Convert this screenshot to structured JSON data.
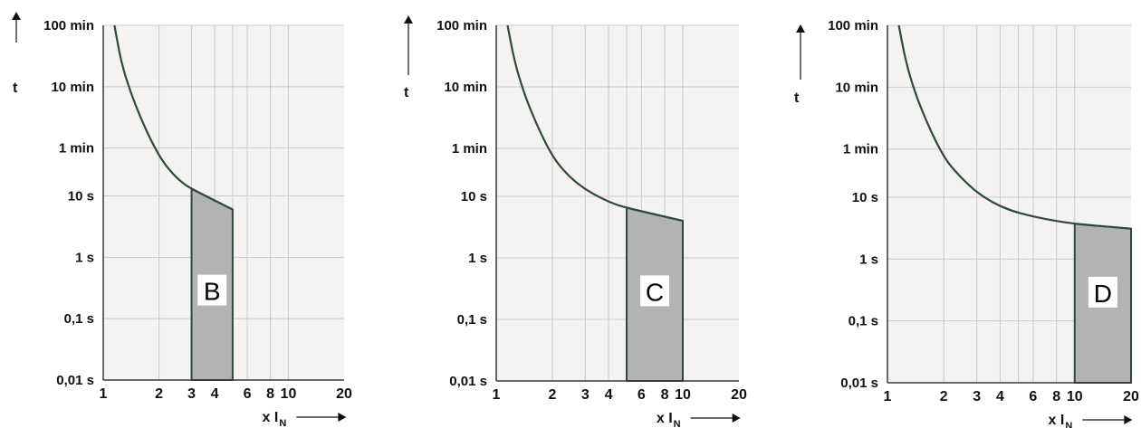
{
  "colors": {
    "plot_bg": "#f4f3f2",
    "grid": "#c9c9c9",
    "curve": "#2d4a3c",
    "region_fill": "#b3b3b3",
    "label_box": "#ffffff",
    "text": "#111111"
  },
  "chart_data": [
    {
      "type": "line",
      "label": "B",
      "xscale": "log",
      "yscale": "log",
      "xlim": [
        1,
        20
      ],
      "ylim_seconds": [
        0.01,
        6000
      ],
      "y_ticks": [
        "100 min",
        "10 min",
        "1 min",
        "10 s",
        "1 s",
        "0,1 s",
        "0,01 s"
      ],
      "y_tick_values_s": [
        6000,
        600,
        60,
        10,
        1,
        0.1,
        0.01
      ],
      "x_ticks": [
        "1",
        "2",
        "3",
        "4",
        "6",
        "8",
        "10",
        "20"
      ],
      "x_tick_values": [
        1,
        2,
        3,
        4,
        6,
        8,
        10,
        20
      ],
      "x_grid": [
        2,
        3,
        4,
        5,
        6,
        8,
        10
      ],
      "y_axis_label": "t",
      "x_axis_label": "x I",
      "x_axis_label_sub": "N",
      "region_x": [
        3,
        5
      ],
      "curve": {
        "x": [
          1.15,
          1.25,
          1.4,
          1.6,
          1.85,
          2.1,
          2.4,
          2.7,
          3.0
        ],
        "y_s": [
          6000,
          1500,
          500,
          180,
          70,
          36,
          22,
          16,
          13
        ]
      },
      "tail": {
        "x": [
          3,
          5
        ],
        "y_s": [
          13,
          6
        ]
      }
    },
    {
      "type": "line",
      "label": "C",
      "xscale": "log",
      "yscale": "log",
      "xlim": [
        1,
        20
      ],
      "ylim_seconds": [
        0.01,
        6000
      ],
      "y_ticks": [
        "100 min",
        "10 min",
        "1 min",
        "10 s",
        "1 s",
        "0,1 s",
        "0,01 s"
      ],
      "y_tick_values_s": [
        6000,
        600,
        60,
        10,
        1,
        0.1,
        0.01
      ],
      "x_ticks": [
        "1",
        "2",
        "3",
        "4",
        "6",
        "8",
        "10",
        "20"
      ],
      "x_tick_values": [
        1,
        2,
        3,
        4,
        6,
        8,
        10,
        20
      ],
      "x_grid": [
        2,
        3,
        4,
        5,
        6,
        8,
        10
      ],
      "y_axis_label": "t",
      "x_axis_label": "x I",
      "x_axis_label_sub": "N",
      "region_x": [
        5,
        10
      ],
      "curve": {
        "x": [
          1.15,
          1.25,
          1.4,
          1.6,
          1.85,
          2.1,
          2.5,
          3.0,
          3.6,
          4.3,
          5.0
        ],
        "y_s": [
          6000,
          1600,
          500,
          180,
          70,
          36,
          20,
          13,
          9.5,
          7.5,
          6.5
        ]
      },
      "tail": {
        "x": [
          5,
          10
        ],
        "y_s": [
          6.5,
          4
        ]
      }
    },
    {
      "type": "line",
      "label": "D",
      "xscale": "log",
      "yscale": "log",
      "xlim": [
        1,
        20
      ],
      "ylim_seconds": [
        0.01,
        6000
      ],
      "y_ticks": [
        "100 min",
        "10 min",
        "1 min",
        "10 s",
        "1 s",
        "0,1 s",
        "0,01 s"
      ],
      "y_tick_values_s": [
        6000,
        600,
        60,
        10,
        1,
        0.1,
        0.01
      ],
      "x_ticks": [
        "1",
        "2",
        "3",
        "4",
        "6",
        "8",
        "10",
        "20"
      ],
      "x_tick_values": [
        1,
        2,
        3,
        4,
        6,
        8,
        10,
        20
      ],
      "x_grid": [
        2,
        3,
        4,
        5,
        6,
        8,
        10
      ],
      "y_axis_label": "t",
      "x_axis_label": "x I",
      "x_axis_label_sub": "N",
      "region_x": [
        10,
        20
      ],
      "curve": {
        "x": [
          1.15,
          1.25,
          1.4,
          1.6,
          1.85,
          2.1,
          2.5,
          3.0,
          3.7,
          4.6,
          5.8,
          7.3,
          10
        ],
        "y_s": [
          6000,
          1600,
          500,
          180,
          70,
          36,
          20,
          12,
          8,
          6,
          5,
          4.3,
          3.7
        ]
      },
      "tail": {
        "x": [
          10,
          20
        ],
        "y_s": [
          3.7,
          3.1
        ]
      }
    }
  ]
}
